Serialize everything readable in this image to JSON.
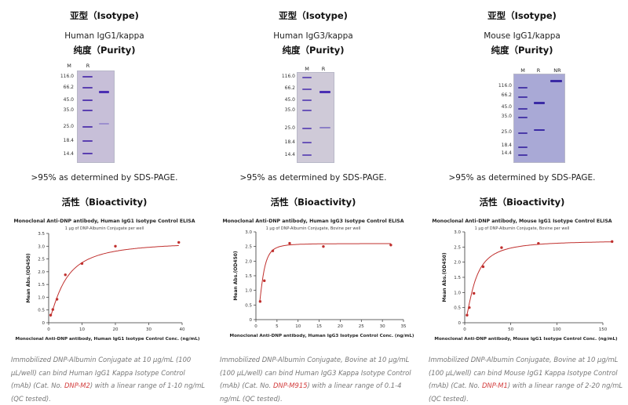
{
  "panels": [
    {
      "isotype_heading": "亚型（Isotype)",
      "isotype_value": "Human IgG1/kappa",
      "purity_heading": "纯度（Purity)",
      "gel": {
        "lanes": [
          "M",
          "R"
        ],
        "markers": [
          "116.0",
          "66.2",
          "45.0",
          "35.0",
          "25.0",
          "18.4",
          "14.4"
        ],
        "background": "#c7bfd8"
      },
      "purity_text": ">95% as determined by SDS-PAGE.",
      "bioactivity_heading": "活性（Bioactivity)",
      "chart_data": {
        "type": "scatter",
        "title": "Monoclonal Anti-DNP antibody, Human IgG1 Isotype Control ELISA",
        "subtitle": "1 μg of DNP-Albumin Conjugate per well",
        "xlabel": "Monoclonal Anti-DNP antibody, Human IgG1 Isotype Control Conc. (ng/mL)",
        "ylabel": "Mean Abs.(OD450)",
        "xlim": [
          0,
          40
        ],
        "ylim": [
          0,
          3.5
        ],
        "xticks": [
          0,
          10,
          20,
          30,
          40
        ],
        "yticks": [
          0,
          0.5,
          1.0,
          1.5,
          2.0,
          2.5,
          3.0,
          3.5
        ],
        "x": [
          0.6,
          1.25,
          2.5,
          5,
          10,
          20,
          39
        ],
        "y": [
          0.3,
          0.52,
          0.92,
          1.88,
          2.32,
          3.0,
          3.15
        ],
        "fit": {
          "top": 3.2,
          "bottom": 0.08,
          "ec50": 4.8,
          "hill": 1.35
        }
      },
      "caption": {
        "before": "Immobilized DNP-Albumin Conjugate at 10 μg/mL (100 μL/well) can bind Human IgG1 Kappa Isotype Control (mAb) (Cat. No. ",
        "cat": "DNP-M2",
        "after": ") with a linear range of 1-10 ng/mL (QC tested)."
      }
    },
    {
      "isotype_heading": "亚型（Isotype)",
      "isotype_value": "Human IgG3/kappa",
      "purity_heading": "纯度（Purity)",
      "gel": {
        "lanes": [
          "M",
          "R"
        ],
        "markers": [
          "116.0",
          "66.2",
          "45.0",
          "35.0",
          "25.0",
          "18.4",
          "14.4"
        ],
        "background": "#cfcad8"
      },
      "purity_text": ">95% as determined by SDS-PAGE.",
      "bioactivity_heading": "活性（Bioactivity)",
      "chart_data": {
        "type": "scatter",
        "title": "Monoclonal Anti-DNP antibody, Human IgG3 Isotype Control ELISA",
        "subtitle": "1 μg of DNP-Albumin Conjugate, Bovine per well",
        "xlabel": "Monoclonal Anti-DNP antibody, Human IgG3 Isotype Control Conc. (ng/mL)",
        "ylabel": "Mean Abs.(OD450)",
        "xlim": [
          0,
          35
        ],
        "ylim": [
          0,
          3.0
        ],
        "xticks": [
          0,
          5,
          10,
          15,
          20,
          25,
          30,
          35
        ],
        "yticks": [
          0,
          0.5,
          1.0,
          1.5,
          2.0,
          2.5,
          3.0
        ],
        "x": [
          1,
          2,
          4,
          8,
          16,
          32
        ],
        "y": [
          0.62,
          1.33,
          2.35,
          2.61,
          2.5,
          2.55
        ],
        "fit": {
          "top": 2.6,
          "bottom": 0.0,
          "ec50": 1.5,
          "hill": 2.4
        }
      },
      "caption": {
        "before": "Immobilized DNP-Albumin Conjugate, Bovine at 10 μg/mL (100 μL/well) can bind Human IgG3 Kappa Isotype Control (mAb) (Cat. No. ",
        "cat": "DNP-M915",
        "after": ") with a linear range of 0.1-4 ng/mL (QC tested)."
      }
    },
    {
      "isotype_heading": "亚型（Isotype)",
      "isotype_value": "Mouse IgG1/kappa",
      "purity_heading": "纯度（Purity)",
      "gel": {
        "lanes": [
          "M",
          "R",
          "NR"
        ],
        "markers": [
          "116.0",
          "66.2",
          "45.0",
          "35.0",
          "25.0",
          "18.4",
          "14.4"
        ],
        "background": "#a9a9d6"
      },
      "purity_text": ">95% as determined by SDS-PAGE.",
      "bioactivity_heading": "活性（Bioactivity)",
      "chart_data": {
        "type": "scatter",
        "title": "Monoclonal Anti-DNP antibody, Mouse IgG1 Isotype Control ELISA",
        "subtitle": "1 μg of DNP-Albumin Conjugate, Bovine per well",
        "xlabel": "Monoclonal Anti-DNP antibody, Mouse IgG1 Isotype Control Conc. (ng/mL)",
        "ylabel": "Mean Abs.(OD450)",
        "xlim": [
          0,
          150
        ],
        "ylim": [
          0,
          3.0
        ],
        "xticks": [
          0,
          50,
          100,
          150
        ],
        "yticks": [
          0,
          0.5,
          1.0,
          1.5,
          2.0,
          2.5,
          3.0
        ],
        "x": [
          2.5,
          5,
          10,
          20,
          40,
          80,
          160
        ],
        "y": [
          0.25,
          0.5,
          0.97,
          1.85,
          2.48,
          2.62,
          2.68
        ],
        "fit": {
          "top": 2.72,
          "bottom": 0.0,
          "ec50": 11,
          "hill": 1.5
        }
      },
      "caption": {
        "before": "Immobilized DNP-Albumin Conjugate, Bovine at 10 μg/mL (100 μL/well) can bind Mouse IgG1 Kappa Isotype Control (mAb) (Cat. No. ",
        "cat": "DNP-M1",
        "after": ") with a linear range of 2-20 ng/mL (QC tested)."
      }
    }
  ],
  "colors": {
    "curve": "#c0302e",
    "marker_band": "#5a3fb0",
    "sample_band": "#4b2fb3",
    "caption_link": "#d23b3b"
  }
}
